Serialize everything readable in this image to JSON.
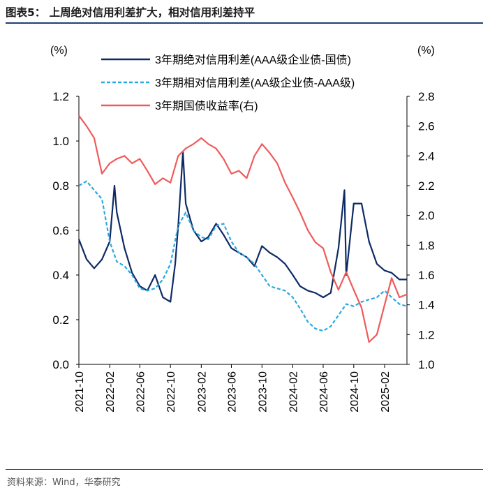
{
  "header": {
    "title": "图表5： 上周绝对信用利差扩大，相对信用利差持平"
  },
  "footer": {
    "source": "资料来源：Wind，华泰研究"
  },
  "colors": {
    "rule": "#1f3f73"
  },
  "chart_data": {
    "type": "line",
    "left_unit": "(%)",
    "right_unit": "(%)",
    "ylim_left": [
      0.0,
      1.2
    ],
    "ylim_right": [
      1.0,
      2.8
    ],
    "left_ticks": [
      "0.0",
      "0.2",
      "0.4",
      "0.6",
      "0.8",
      "1.0",
      "1.2"
    ],
    "right_ticks": [
      "1.0",
      "1.2",
      "1.4",
      "1.6",
      "1.8",
      "2.0",
      "2.2",
      "2.4",
      "2.6",
      "2.8"
    ],
    "x_tick_labels": [
      "2021-10",
      "2022-02",
      "2022-06",
      "2022-10",
      "2023-02",
      "2023-06",
      "2023-10",
      "2024-02",
      "2024-06",
      "2024-10",
      "2025-02"
    ],
    "x_start": "2021-10",
    "x_end": "2025-05",
    "series": [
      {
        "name": "3年期绝对信用利差(AAA级企业债-国债)",
        "axis": "left",
        "color": "#0d2a66",
        "dash": "none",
        "points": [
          [
            "2021-10",
            0.56
          ],
          [
            "2021-11",
            0.47
          ],
          [
            "2021-12",
            0.43
          ],
          [
            "2022-01",
            0.47
          ],
          [
            "2022-02",
            0.55
          ],
          [
            "2022-02-20",
            0.8
          ],
          [
            "2022-03",
            0.68
          ],
          [
            "2022-04",
            0.52
          ],
          [
            "2022-05",
            0.41
          ],
          [
            "2022-06",
            0.35
          ],
          [
            "2022-07",
            0.33
          ],
          [
            "2022-08",
            0.4
          ],
          [
            "2022-09",
            0.3
          ],
          [
            "2022-10",
            0.28
          ],
          [
            "2022-10-20",
            0.45
          ],
          [
            "2022-11",
            0.62
          ],
          [
            "2022-11-20",
            0.95
          ],
          [
            "2022-12",
            0.72
          ],
          [
            "2023-01",
            0.6
          ],
          [
            "2023-02",
            0.55
          ],
          [
            "2023-03",
            0.57
          ],
          [
            "2023-04",
            0.63
          ],
          [
            "2023-05",
            0.58
          ],
          [
            "2023-06",
            0.52
          ],
          [
            "2023-07",
            0.5
          ],
          [
            "2023-08",
            0.48
          ],
          [
            "2023-09",
            0.44
          ],
          [
            "2023-10",
            0.53
          ],
          [
            "2023-11",
            0.5
          ],
          [
            "2023-12",
            0.48
          ],
          [
            "2024-01",
            0.45
          ],
          [
            "2024-02",
            0.4
          ],
          [
            "2024-03",
            0.35
          ],
          [
            "2024-04",
            0.33
          ],
          [
            "2024-05",
            0.32
          ],
          [
            "2024-06",
            0.3
          ],
          [
            "2024-07",
            0.32
          ],
          [
            "2024-08",
            0.52
          ],
          [
            "2024-08-25",
            0.78
          ],
          [
            "2024-09",
            0.4
          ],
          [
            "2024-10",
            0.72
          ],
          [
            "2024-11",
            0.72
          ],
          [
            "2024-12",
            0.55
          ],
          [
            "2025-01",
            0.45
          ],
          [
            "2025-02",
            0.42
          ],
          [
            "2025-03",
            0.41
          ],
          [
            "2025-04",
            0.38
          ],
          [
            "2025-05",
            0.38
          ]
        ]
      },
      {
        "name": "3年期相对信用利差(AA级企业债-AAA级)",
        "axis": "left",
        "color": "#2aa8e0",
        "dash": "5,3",
        "points": [
          [
            "2021-10",
            0.8
          ],
          [
            "2021-11",
            0.82
          ],
          [
            "2021-12",
            0.78
          ],
          [
            "2022-01",
            0.74
          ],
          [
            "2022-02",
            0.55
          ],
          [
            "2022-03",
            0.46
          ],
          [
            "2022-04",
            0.44
          ],
          [
            "2022-05",
            0.4
          ],
          [
            "2022-06",
            0.34
          ],
          [
            "2022-07",
            0.33
          ],
          [
            "2022-08",
            0.34
          ],
          [
            "2022-09",
            0.38
          ],
          [
            "2022-10",
            0.45
          ],
          [
            "2022-11",
            0.62
          ],
          [
            "2022-12",
            0.68
          ],
          [
            "2023-01",
            0.6
          ],
          [
            "2023-02",
            0.57
          ],
          [
            "2023-03",
            0.56
          ],
          [
            "2023-04",
            0.62
          ],
          [
            "2023-05",
            0.63
          ],
          [
            "2023-06",
            0.55
          ],
          [
            "2023-07",
            0.5
          ],
          [
            "2023-08",
            0.48
          ],
          [
            "2023-09",
            0.45
          ],
          [
            "2023-10",
            0.4
          ],
          [
            "2023-11",
            0.35
          ],
          [
            "2023-12",
            0.34
          ],
          [
            "2024-01",
            0.33
          ],
          [
            "2024-02",
            0.3
          ],
          [
            "2024-03",
            0.25
          ],
          [
            "2024-04",
            0.19
          ],
          [
            "2024-05",
            0.16
          ],
          [
            "2024-06",
            0.15
          ],
          [
            "2024-07",
            0.17
          ],
          [
            "2024-08",
            0.22
          ],
          [
            "2024-09",
            0.27
          ],
          [
            "2024-10",
            0.26
          ],
          [
            "2024-11",
            0.28
          ],
          [
            "2024-12",
            0.29
          ],
          [
            "2025-01",
            0.3
          ],
          [
            "2025-02",
            0.33
          ],
          [
            "2025-03",
            0.3
          ],
          [
            "2025-04",
            0.27
          ],
          [
            "2025-05",
            0.26
          ]
        ]
      },
      {
        "name": "3年期国债收益率(右)",
        "axis": "right",
        "color": "#ef5b5b",
        "dash": "none",
        "points": [
          [
            "2021-10",
            2.67
          ],
          [
            "2021-11",
            2.6
          ],
          [
            "2021-12",
            2.52
          ],
          [
            "2022-01",
            2.28
          ],
          [
            "2022-02",
            2.35
          ],
          [
            "2022-03",
            2.38
          ],
          [
            "2022-04",
            2.4
          ],
          [
            "2022-05",
            2.35
          ],
          [
            "2022-06",
            2.38
          ],
          [
            "2022-07",
            2.3
          ],
          [
            "2022-08",
            2.21
          ],
          [
            "2022-09",
            2.25
          ],
          [
            "2022-10",
            2.22
          ],
          [
            "2022-11",
            2.4
          ],
          [
            "2022-12",
            2.45
          ],
          [
            "2023-01",
            2.48
          ],
          [
            "2023-02",
            2.52
          ],
          [
            "2023-03",
            2.48
          ],
          [
            "2023-04",
            2.45
          ],
          [
            "2023-05",
            2.38
          ],
          [
            "2023-06",
            2.28
          ],
          [
            "2023-07",
            2.3
          ],
          [
            "2023-08",
            2.25
          ],
          [
            "2023-09",
            2.4
          ],
          [
            "2023-10",
            2.48
          ],
          [
            "2023-11",
            2.42
          ],
          [
            "2023-12",
            2.35
          ],
          [
            "2024-01",
            2.22
          ],
          [
            "2024-02",
            2.12
          ],
          [
            "2024-03",
            2.02
          ],
          [
            "2024-04",
            1.9
          ],
          [
            "2024-05",
            1.82
          ],
          [
            "2024-06",
            1.78
          ],
          [
            "2024-07",
            1.62
          ],
          [
            "2024-08",
            1.5
          ],
          [
            "2024-09",
            1.62
          ],
          [
            "2024-10",
            1.5
          ],
          [
            "2024-11",
            1.38
          ],
          [
            "2024-12",
            1.15
          ],
          [
            "2025-01",
            1.2
          ],
          [
            "2025-02",
            1.4
          ],
          [
            "2025-03",
            1.58
          ],
          [
            "2025-04",
            1.45
          ],
          [
            "2025-05",
            1.47
          ]
        ]
      }
    ]
  }
}
